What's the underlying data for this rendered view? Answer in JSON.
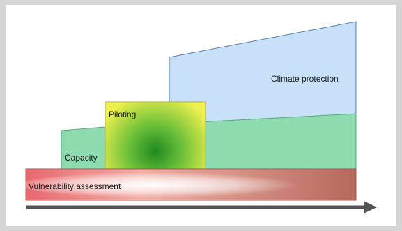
{
  "diagram": {
    "stages": {
      "vulnerability": {
        "label": "Vulnerability assessment"
      },
      "capacity": {
        "label": "Capacity"
      },
      "piloting": {
        "label": "Piloting"
      },
      "climate": {
        "label": "Climate protection"
      }
    },
    "colors": {
      "vulnerability": "#e8686e",
      "vulnerability_end": "#b5695c",
      "capacity": "#8fdbb0",
      "capacity_outline": "#5aa87c",
      "piloting_outer": "#f0f050",
      "piloting_center": "#1f8a1f",
      "climate": "#c8e0f8",
      "climate_outline": "#5a7fa8",
      "arrow": "#555555"
    }
  }
}
